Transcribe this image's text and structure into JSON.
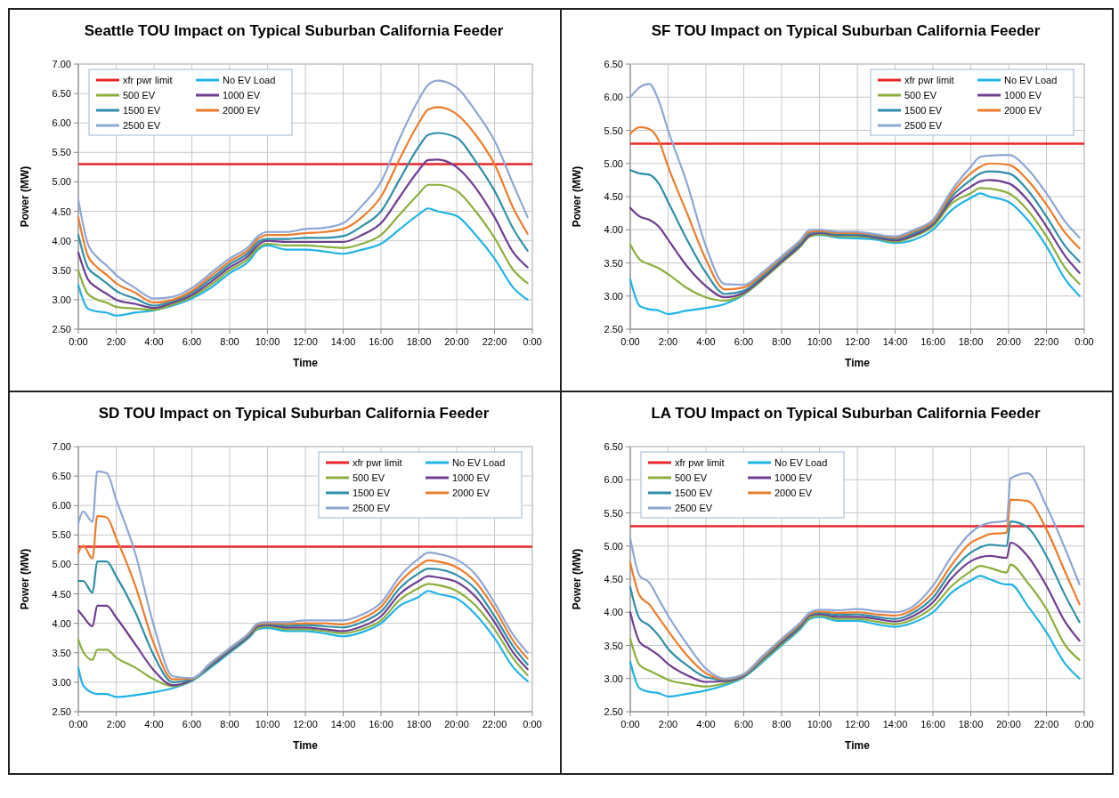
{
  "chart_data": [
    {
      "type": "line",
      "title": "Seattle TOU Impact on Typical Suburban California Feeder",
      "xlabel": "Time",
      "ylabel": "Power (MW)",
      "legend": "top left",
      "grid": true,
      "marker": "none",
      "line_style": "solid",
      "xlim": [
        0,
        24
      ],
      "xticks": [
        {
          "value": 0,
          "label": "0:00"
        },
        {
          "value": 2,
          "label": "2:00"
        },
        {
          "value": 4,
          "label": "4:00"
        },
        {
          "value": 6,
          "label": "6:00"
        },
        {
          "value": 8,
          "label": "8:00"
        },
        {
          "value": 10,
          "label": "10:00"
        },
        {
          "value": 12,
          "label": "12:00"
        },
        {
          "value": 14,
          "label": "14:00"
        },
        {
          "value": 16,
          "label": "16:00"
        },
        {
          "value": 18,
          "label": "18:00"
        },
        {
          "value": 20,
          "label": "20:00"
        },
        {
          "value": 22,
          "label": "22:00"
        },
        {
          "value": 24,
          "label": "0:00"
        }
      ],
      "ylim": [
        2.5,
        7
      ],
      "yticks": [
        {
          "value": 2.5,
          "label": "2.50"
        },
        {
          "value": 3,
          "label": "3.00"
        },
        {
          "value": 3.5,
          "label": "3.50"
        },
        {
          "value": 4,
          "label": "4.00"
        },
        {
          "value": 4.5,
          "label": "4.50"
        },
        {
          "value": 5,
          "label": "5.00"
        },
        {
          "value": 5.5,
          "label": "5.50"
        },
        {
          "value": 6,
          "label": "6.00"
        },
        {
          "value": 6.5,
          "label": "6.50"
        },
        {
          "value": 7,
          "label": "7.00"
        }
      ],
      "x": [
        0,
        0.5,
        1,
        1.5,
        2,
        3,
        4,
        5,
        6,
        7,
        8,
        9,
        9.5,
        10,
        11,
        12,
        13,
        14,
        15,
        16,
        17,
        18,
        18.5,
        19,
        20,
        21,
        22,
        23,
        23.75
      ],
      "ref_lines": [
        {
          "axis": "y",
          "value": 5.3,
          "label": "xfr pwr limit",
          "color": "#e8262a"
        }
      ],
      "series": [
        {
          "name": "No EV Load",
          "color": "#1fb4e6",
          "values": [
            3.25,
            2.85,
            2.8,
            2.78,
            2.73,
            2.78,
            2.82,
            2.9,
            3.02,
            3.2,
            3.45,
            3.65,
            3.85,
            3.92,
            3.85,
            3.85,
            3.82,
            3.78,
            3.85,
            3.95,
            4.2,
            4.45,
            4.55,
            4.5,
            4.42,
            4.1,
            3.7,
            3.2,
            3.0
          ]
        },
        {
          "name": "500 EV",
          "color": "#8caf3c",
          "values": [
            3.5,
            3.1,
            3.0,
            2.95,
            2.88,
            2.85,
            2.83,
            2.92,
            3.05,
            3.25,
            3.5,
            3.7,
            3.88,
            3.95,
            3.92,
            3.92,
            3.9,
            3.88,
            3.95,
            4.1,
            4.45,
            4.8,
            4.95,
            4.95,
            4.85,
            4.5,
            4.05,
            3.5,
            3.28
          ]
        },
        {
          "name": "1000 EV",
          "color": "#6f3d91",
          "values": [
            3.8,
            3.35,
            3.2,
            3.1,
            3.0,
            2.93,
            2.86,
            2.95,
            3.08,
            3.3,
            3.55,
            3.75,
            3.93,
            4.0,
            3.98,
            3.98,
            3.98,
            3.98,
            4.1,
            4.3,
            4.75,
            5.2,
            5.37,
            5.38,
            5.25,
            4.9,
            4.4,
            3.8,
            3.55
          ]
        },
        {
          "name": "1500 EV",
          "color": "#2e8fa8",
          "values": [
            4.1,
            3.55,
            3.4,
            3.28,
            3.15,
            3.02,
            2.9,
            2.98,
            3.12,
            3.35,
            3.6,
            3.8,
            3.98,
            4.03,
            4.03,
            4.05,
            4.05,
            4.08,
            4.25,
            4.5,
            5.05,
            5.6,
            5.8,
            5.83,
            5.75,
            5.35,
            4.85,
            4.2,
            3.83
          ]
        },
        {
          "name": "2000 EV",
          "color": "#ec7d2c",
          "values": [
            4.4,
            3.75,
            3.55,
            3.42,
            3.28,
            3.12,
            2.95,
            3.0,
            3.15,
            3.4,
            3.65,
            3.85,
            4.03,
            4.1,
            4.1,
            4.13,
            4.15,
            4.2,
            4.4,
            4.75,
            5.4,
            6.0,
            6.23,
            6.27,
            6.15,
            5.8,
            5.3,
            4.55,
            4.12
          ]
        },
        {
          "name": "2500 EV",
          "color": "#8ea7d4",
          "values": [
            4.7,
            3.95,
            3.72,
            3.58,
            3.42,
            3.2,
            3.02,
            3.05,
            3.2,
            3.45,
            3.7,
            3.9,
            4.08,
            4.15,
            4.15,
            4.2,
            4.22,
            4.3,
            4.6,
            5.0,
            5.75,
            6.4,
            6.65,
            6.72,
            6.6,
            6.2,
            5.7,
            4.95,
            4.4
          ]
        }
      ]
    },
    {
      "type": "line",
      "title": "SF TOU Impact on Typical Suburban California Feeder",
      "xlabel": "Time",
      "ylabel": "Power (MW)",
      "legend": "top right",
      "grid": true,
      "marker": "none",
      "line_style": "solid",
      "xlim": [
        0,
        24
      ],
      "xticks": [
        {
          "value": 0,
          "label": "0:00"
        },
        {
          "value": 2,
          "label": "2:00"
        },
        {
          "value": 4,
          "label": "4:00"
        },
        {
          "value": 6,
          "label": "6:00"
        },
        {
          "value": 8,
          "label": "8:00"
        },
        {
          "value": 10,
          "label": "10:00"
        },
        {
          "value": 12,
          "label": "12:00"
        },
        {
          "value": 14,
          "label": "14:00"
        },
        {
          "value": 16,
          "label": "16:00"
        },
        {
          "value": 18,
          "label": "18:00"
        },
        {
          "value": 20,
          "label": "20:00"
        },
        {
          "value": 22,
          "label": "22:00"
        },
        {
          "value": 24,
          "label": "0:00"
        }
      ],
      "ylim": [
        2.5,
        6.5
      ],
      "yticks": [
        {
          "value": 2.5,
          "label": "2.50"
        },
        {
          "value": 3,
          "label": "3.00"
        },
        {
          "value": 3.5,
          "label": "3.50"
        },
        {
          "value": 4,
          "label": "4.00"
        },
        {
          "value": 4.5,
          "label": "4.50"
        },
        {
          "value": 5,
          "label": "5.00"
        },
        {
          "value": 5.5,
          "label": "5.50"
        },
        {
          "value": 6,
          "label": "6.00"
        },
        {
          "value": 6.5,
          "label": "6.50"
        }
      ],
      "x": [
        0,
        0.5,
        1,
        1.5,
        2,
        3,
        4,
        5,
        6,
        7,
        8,
        9,
        9.5,
        10,
        11,
        12,
        13,
        14,
        15,
        16,
        17,
        18,
        18.5,
        19,
        20,
        21,
        22,
        23,
        23.75
      ],
      "ref_lines": [
        {
          "axis": "y",
          "value": 5.3,
          "label": "xfr pwr limit",
          "color": "#e8262a"
        }
      ],
      "series": [
        {
          "name": "No EV Load",
          "color": "#1fb4e6",
          "values": [
            3.25,
            2.85,
            2.8,
            2.78,
            2.73,
            2.78,
            2.82,
            2.88,
            3.02,
            3.25,
            3.5,
            3.75,
            3.9,
            3.92,
            3.88,
            3.87,
            3.85,
            3.8,
            3.85,
            4.0,
            4.3,
            4.48,
            4.55,
            4.5,
            4.42,
            4.15,
            3.75,
            3.25,
            3.0
          ]
        },
        {
          "name": "500 EV",
          "color": "#8caf3c",
          "values": [
            3.78,
            3.55,
            3.48,
            3.42,
            3.33,
            3.12,
            2.98,
            2.93,
            3.03,
            3.25,
            3.5,
            3.75,
            3.9,
            3.93,
            3.9,
            3.9,
            3.87,
            3.82,
            3.9,
            4.05,
            4.4,
            4.55,
            4.63,
            4.62,
            4.55,
            4.3,
            3.9,
            3.42,
            3.18
          ]
        },
        {
          "name": "1000 EV",
          "color": "#6f3d91",
          "values": [
            4.33,
            4.2,
            4.15,
            4.05,
            3.85,
            3.45,
            3.15,
            2.98,
            3.05,
            3.27,
            3.52,
            3.77,
            3.92,
            3.95,
            3.92,
            3.92,
            3.88,
            3.84,
            3.92,
            4.08,
            4.45,
            4.65,
            4.73,
            4.75,
            4.7,
            4.45,
            4.05,
            3.6,
            3.35
          ]
        },
        {
          "name": "1500 EV",
          "color": "#2e8fa8",
          "values": [
            4.9,
            4.85,
            4.83,
            4.7,
            4.42,
            3.85,
            3.35,
            3.03,
            3.08,
            3.3,
            3.55,
            3.8,
            3.95,
            3.97,
            3.93,
            3.93,
            3.9,
            3.86,
            3.95,
            4.1,
            4.5,
            4.75,
            4.85,
            4.88,
            4.85,
            4.6,
            4.2,
            3.75,
            3.52
          ]
        },
        {
          "name": "2000 EV",
          "color": "#ec7d2c",
          "values": [
            5.45,
            5.55,
            5.52,
            5.35,
            4.95,
            4.25,
            3.55,
            3.1,
            3.13,
            3.33,
            3.58,
            3.83,
            3.97,
            3.98,
            3.95,
            3.95,
            3.92,
            3.88,
            3.98,
            4.12,
            4.55,
            4.85,
            4.95,
            5.0,
            4.98,
            4.75,
            4.38,
            3.95,
            3.72
          ]
        },
        {
          "name": "2500 EV",
          "color": "#8ea7d4",
          "values": [
            6.0,
            6.15,
            6.2,
            5.95,
            5.5,
            4.7,
            3.75,
            3.18,
            3.17,
            3.36,
            3.6,
            3.85,
            4.0,
            4.0,
            3.97,
            3.97,
            3.93,
            3.9,
            4.0,
            4.15,
            4.6,
            4.95,
            5.1,
            5.12,
            5.13,
            4.92,
            4.55,
            4.12,
            3.88
          ]
        }
      ]
    },
    {
      "type": "line",
      "title": "SD TOU Impact on Typical Suburban California Feeder",
      "xlabel": "Time",
      "ylabel": "Power (MW)",
      "legend": "top right",
      "grid": true,
      "marker": "none",
      "line_style": "solid",
      "xlim": [
        0,
        24
      ],
      "xticks": [
        {
          "value": 0,
          "label": "0:00"
        },
        {
          "value": 2,
          "label": "2:00"
        },
        {
          "value": 4,
          "label": "4:00"
        },
        {
          "value": 6,
          "label": "6:00"
        },
        {
          "value": 8,
          "label": "8:00"
        },
        {
          "value": 10,
          "label": "10:00"
        },
        {
          "value": 12,
          "label": "12:00"
        },
        {
          "value": 14,
          "label": "14:00"
        },
        {
          "value": 16,
          "label": "16:00"
        },
        {
          "value": 18,
          "label": "18:00"
        },
        {
          "value": 20,
          "label": "20:00"
        },
        {
          "value": 22,
          "label": "22:00"
        },
        {
          "value": 24,
          "label": "0:00"
        }
      ],
      "ylim": [
        2.5,
        7
      ],
      "yticks": [
        {
          "value": 2.5,
          "label": "2.50"
        },
        {
          "value": 3,
          "label": "3.00"
        },
        {
          "value": 3.5,
          "label": "3.50"
        },
        {
          "value": 4,
          "label": "4.00"
        },
        {
          "value": 4.5,
          "label": "4.50"
        },
        {
          "value": 5,
          "label": "5.00"
        },
        {
          "value": 5.5,
          "label": "5.50"
        },
        {
          "value": 6,
          "label": "6.00"
        },
        {
          "value": 6.5,
          "label": "6.50"
        },
        {
          "value": 7,
          "label": "7.00"
        }
      ],
      "x": [
        0,
        0.25,
        0.75,
        1,
        1.5,
        2,
        3,
        4,
        5,
        6,
        7,
        8,
        9,
        9.5,
        10,
        11,
        12,
        13,
        14,
        15,
        16,
        17,
        18,
        18.5,
        19,
        20,
        21,
        22,
        23,
        23.75
      ],
      "ref_lines": [
        {
          "axis": "y",
          "value": 5.3,
          "label": "xfr pwr limit",
          "color": "#e8262a"
        }
      ],
      "series": [
        {
          "name": "No EV Load",
          "color": "#1fb4e6",
          "values": [
            3.25,
            2.95,
            2.82,
            2.8,
            2.8,
            2.75,
            2.78,
            2.83,
            2.9,
            3.02,
            3.25,
            3.5,
            3.75,
            3.9,
            3.92,
            3.87,
            3.87,
            3.83,
            3.78,
            3.85,
            4.0,
            4.3,
            4.45,
            4.55,
            4.5,
            4.42,
            4.15,
            3.75,
            3.25,
            3.02
          ]
        },
        {
          "name": "500 EV",
          "color": "#8caf3c",
          "values": [
            3.72,
            3.52,
            3.38,
            3.55,
            3.55,
            3.42,
            3.25,
            3.05,
            2.93,
            3.03,
            3.27,
            3.52,
            3.77,
            3.92,
            3.95,
            3.9,
            3.9,
            3.87,
            3.83,
            3.9,
            4.05,
            4.4,
            4.6,
            4.67,
            4.65,
            4.55,
            4.3,
            3.9,
            3.4,
            3.12
          ]
        },
        {
          "name": "1000 EV",
          "color": "#6f3d91",
          "values": [
            4.22,
            4.12,
            3.95,
            4.3,
            4.3,
            4.1,
            3.65,
            3.2,
            2.95,
            3.04,
            3.28,
            3.53,
            3.78,
            3.95,
            3.97,
            3.93,
            3.93,
            3.9,
            3.87,
            3.95,
            4.12,
            4.5,
            4.72,
            4.8,
            4.78,
            4.7,
            4.45,
            4.02,
            3.5,
            3.22
          ]
        },
        {
          "name": "1500 EV",
          "color": "#2e8fa8",
          "values": [
            4.72,
            4.72,
            4.52,
            5.05,
            5.05,
            4.8,
            4.2,
            3.45,
            3.0,
            3.05,
            3.3,
            3.55,
            3.8,
            3.97,
            3.99,
            3.96,
            3.97,
            3.95,
            3.93,
            4.02,
            4.2,
            4.6,
            4.85,
            4.93,
            4.92,
            4.82,
            4.58,
            4.12,
            3.6,
            3.3
          ]
        },
        {
          "name": "2000 EV",
          "color": "#ec7d2c",
          "values": [
            5.2,
            5.32,
            5.1,
            5.82,
            5.8,
            5.45,
            4.65,
            3.65,
            3.05,
            3.06,
            3.32,
            3.57,
            3.82,
            3.98,
            4.0,
            3.99,
            4.0,
            4.0,
            3.98,
            4.08,
            4.28,
            4.7,
            4.98,
            5.07,
            5.05,
            4.95,
            4.7,
            4.25,
            3.7,
            3.4
          ]
        },
        {
          "name": "2500 EV",
          "color": "#8ea7d4",
          "values": [
            5.7,
            5.9,
            5.72,
            6.58,
            6.55,
            6.1,
            5.2,
            3.95,
            3.1,
            3.07,
            3.33,
            3.58,
            3.83,
            4.0,
            4.02,
            4.02,
            4.05,
            4.05,
            4.05,
            4.15,
            4.35,
            4.8,
            5.1,
            5.2,
            5.18,
            5.08,
            4.83,
            4.35,
            3.8,
            3.5
          ]
        }
      ]
    },
    {
      "type": "line",
      "title": "LA TOU Impact on Typical Suburban California Feeder",
      "xlabel": "Time",
      "ylabel": "Power (MW)",
      "legend": "top left",
      "grid": true,
      "marker": "none",
      "line_style": "solid",
      "xlim": [
        0,
        24
      ],
      "xticks": [
        {
          "value": 0,
          "label": "0:00"
        },
        {
          "value": 2,
          "label": "2:00"
        },
        {
          "value": 4,
          "label": "4:00"
        },
        {
          "value": 6,
          "label": "6:00"
        },
        {
          "value": 8,
          "label": "8:00"
        },
        {
          "value": 10,
          "label": "10:00"
        },
        {
          "value": 12,
          "label": "12:00"
        },
        {
          "value": 14,
          "label": "14:00"
        },
        {
          "value": 16,
          "label": "16:00"
        },
        {
          "value": 18,
          "label": "18:00"
        },
        {
          "value": 20,
          "label": "20:00"
        },
        {
          "value": 22,
          "label": "22:00"
        },
        {
          "value": 24,
          "label": "0:00"
        }
      ],
      "ylim": [
        2.5,
        6.5
      ],
      "yticks": [
        {
          "value": 2.5,
          "label": "2.50"
        },
        {
          "value": 3,
          "label": "3.00"
        },
        {
          "value": 3.5,
          "label": "3.50"
        },
        {
          "value": 4,
          "label": "4.00"
        },
        {
          "value": 4.5,
          "label": "4.50"
        },
        {
          "value": 5,
          "label": "5.00"
        },
        {
          "value": 5.5,
          "label": "5.50"
        },
        {
          "value": 6,
          "label": "6.00"
        },
        {
          "value": 6.5,
          "label": "6.50"
        }
      ],
      "x": [
        0,
        0.5,
        1,
        1.5,
        2,
        3,
        4,
        5,
        6,
        7,
        8,
        9,
        9.5,
        10,
        11,
        12,
        13,
        14,
        15,
        16,
        17,
        18,
        18.5,
        19,
        19.9,
        20.1,
        21,
        22,
        23,
        23.75
      ],
      "ref_lines": [
        {
          "axis": "y",
          "value": 5.3,
          "label": "xfr pwr limit",
          "color": "#e8262a"
        }
      ],
      "series": [
        {
          "name": "No EV Load",
          "color": "#1fb4e6",
          "values": [
            3.25,
            2.85,
            2.8,
            2.78,
            2.73,
            2.77,
            2.82,
            2.9,
            3.02,
            3.25,
            3.5,
            3.75,
            3.9,
            3.93,
            3.87,
            3.87,
            3.82,
            3.78,
            3.85,
            4.0,
            4.3,
            4.48,
            4.55,
            4.5,
            4.42,
            4.42,
            4.1,
            3.7,
            3.22,
            3.0
          ]
        },
        {
          "name": "500 EV",
          "color": "#8caf3c",
          "values": [
            3.6,
            3.2,
            3.12,
            3.05,
            2.98,
            2.92,
            2.88,
            2.93,
            3.03,
            3.27,
            3.52,
            3.77,
            3.92,
            3.95,
            3.9,
            3.9,
            3.86,
            3.82,
            3.9,
            4.08,
            4.4,
            4.62,
            4.7,
            4.67,
            4.6,
            4.72,
            4.45,
            4.05,
            3.5,
            3.28
          ]
        },
        {
          "name": "1000 EV",
          "color": "#6f3d91",
          "values": [
            4.0,
            3.55,
            3.45,
            3.35,
            3.22,
            3.05,
            2.95,
            2.96,
            3.04,
            3.29,
            3.54,
            3.79,
            3.95,
            3.97,
            3.93,
            3.93,
            3.9,
            3.86,
            3.95,
            4.15,
            4.52,
            4.77,
            4.83,
            4.85,
            4.82,
            5.05,
            4.85,
            4.4,
            3.85,
            3.57
          ]
        },
        {
          "name": "1500 EV",
          "color": "#2e8fa8",
          "values": [
            4.38,
            3.9,
            3.8,
            3.65,
            3.45,
            3.2,
            3.02,
            2.98,
            3.05,
            3.3,
            3.56,
            3.81,
            3.97,
            3.99,
            3.96,
            3.97,
            3.93,
            3.9,
            4.0,
            4.22,
            4.62,
            4.9,
            4.98,
            5.02,
            5.0,
            5.37,
            5.28,
            4.85,
            4.25,
            3.85
          ]
        },
        {
          "name": "2000 EV",
          "color": "#ec7d2c",
          "values": [
            4.75,
            4.25,
            4.12,
            3.92,
            3.72,
            3.35,
            3.08,
            2.99,
            3.06,
            3.32,
            3.58,
            3.83,
            3.98,
            4.01,
            3.99,
            4.0,
            3.97,
            3.95,
            4.05,
            4.3,
            4.72,
            5.05,
            5.12,
            5.18,
            5.2,
            5.7,
            5.68,
            5.25,
            4.6,
            4.12
          ]
        },
        {
          "name": "2500 EV",
          "color": "#8ea7d4",
          "values": [
            5.12,
            4.55,
            4.45,
            4.2,
            3.95,
            3.52,
            3.15,
            3.0,
            3.07,
            3.34,
            3.6,
            3.85,
            4.0,
            4.04,
            4.03,
            4.05,
            4.02,
            4.0,
            4.1,
            4.4,
            4.85,
            5.2,
            5.3,
            5.35,
            5.38,
            6.02,
            6.1,
            5.6,
            4.95,
            4.42
          ]
        }
      ]
    }
  ]
}
